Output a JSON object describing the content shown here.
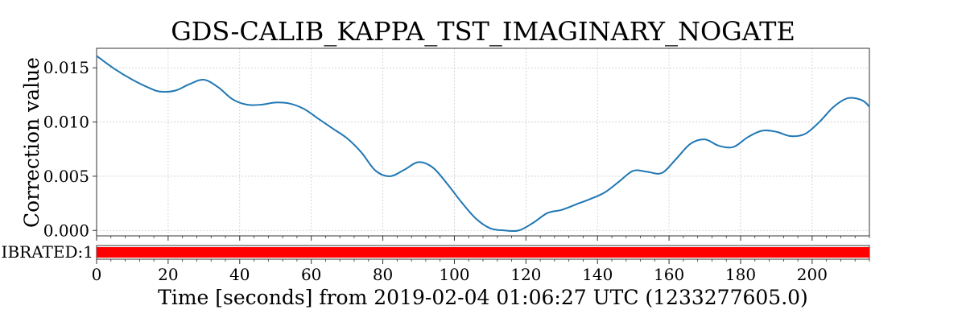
{
  "chart_data": {
    "type": "line",
    "title": "GDS-CALIB_KAPPA_TST_IMAGINARY_NOGATE",
    "xlabel": "Time [seconds] from 2019-02-04 01:06:27 UTC (1233277605.0)",
    "ylabel": "Correction value",
    "xlim": [
      0,
      216
    ],
    "ylim": [
      -0.0005,
      0.0168
    ],
    "x_ticks": [
      0,
      20,
      40,
      60,
      80,
      100,
      120,
      140,
      160,
      180,
      200
    ],
    "y_ticks": [
      0.0,
      0.005,
      0.01,
      0.015
    ],
    "y_tick_labels": [
      "0.000",
      "0.005",
      "0.010",
      "0.015"
    ],
    "grid": true,
    "series": [
      {
        "color": "#1f77b4",
        "x": [
          0,
          5,
          10,
          15,
          18,
          22,
          26,
          30,
          34,
          38,
          42,
          46,
          50,
          54,
          58,
          62,
          66,
          70,
          74,
          78,
          82,
          86,
          90,
          94,
          98,
          102,
          106,
          110,
          114,
          118,
          122,
          126,
          130,
          134,
          138,
          142,
          146,
          150,
          154,
          158,
          162,
          166,
          170,
          174,
          178,
          182,
          186,
          190,
          194,
          198,
          202,
          206,
          210,
          214,
          216
        ],
        "values": [
          0.0161,
          0.0149,
          0.0139,
          0.0131,
          0.0128,
          0.0129,
          0.0135,
          0.0139,
          0.0132,
          0.0121,
          0.0116,
          0.0116,
          0.0118,
          0.0117,
          0.0112,
          0.0103,
          0.0094,
          0.0085,
          0.0072,
          0.0055,
          0.005,
          0.0056,
          0.0063,
          0.0058,
          0.0043,
          0.0026,
          0.0011,
          0.0002,
          0.0,
          0.0,
          0.0007,
          0.0016,
          0.0019,
          0.0024,
          0.0029,
          0.0035,
          0.0045,
          0.0055,
          0.0054,
          0.0053,
          0.0066,
          0.008,
          0.0084,
          0.0078,
          0.0077,
          0.0086,
          0.0092,
          0.0091,
          0.0087,
          0.0089,
          0.01,
          0.0114,
          0.0122,
          0.012,
          0.0114
        ]
      }
    ],
    "segment_bar": {
      "label": "IBRATED:1",
      "color": "#ff0000",
      "segments": [
        [
          0,
          216
        ]
      ]
    }
  }
}
